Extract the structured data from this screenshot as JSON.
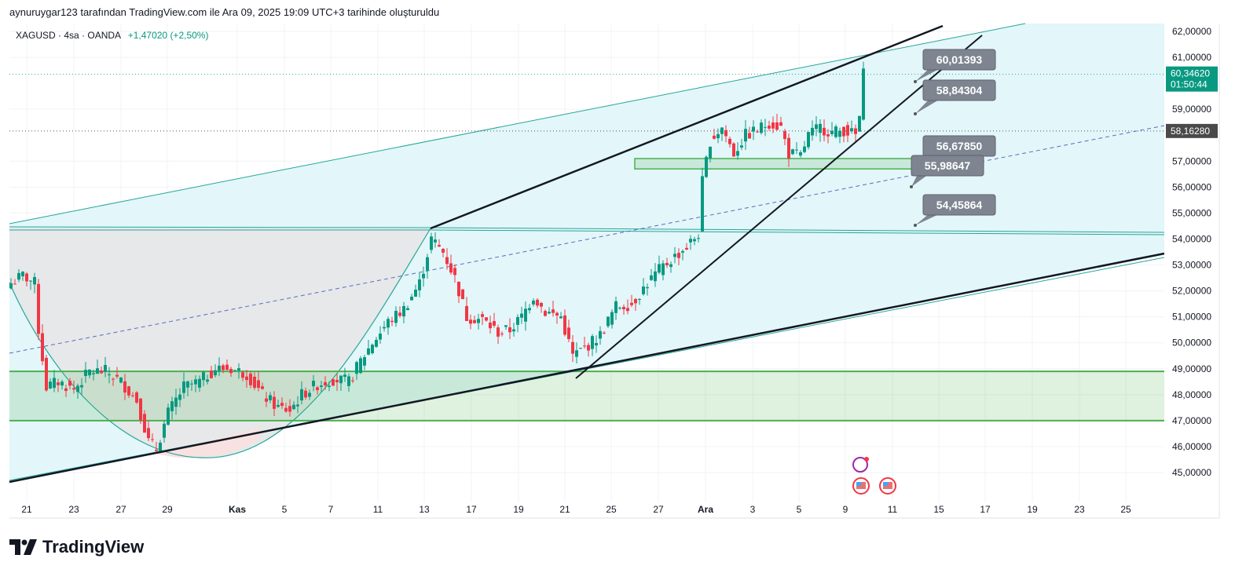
{
  "caption": "aynuruygar123 tarafından TradingView.com ile Ara 09, 2025 19:09 UTC+3 tarihinde oluşturuldu",
  "legend": {
    "symbol": "XAGUSD · 4sa · OANDA",
    "change": "+1,47020 (+2,50%)"
  },
  "branding": "TradingView",
  "colors": {
    "up": "#089981",
    "down": "#f23645",
    "channel": "#e3f6f9",
    "zone": "#4caf50",
    "teal": "#26a69a"
  },
  "chart_data": {
    "type": "candlestick",
    "symbol": "XAGUSD",
    "ylim": [
      44,
      62.5
    ],
    "y_ticks": [
      "62,00000",
      "61,00000",
      "59,00000",
      "57,00000",
      "56,00000",
      "55,00000",
      "54,00000",
      "53,00000",
      "52,00000",
      "51,00000",
      "50,00000",
      "49,00000",
      "48,00000",
      "47,00000",
      "46,00000",
      "45,00000"
    ],
    "y_tick_values": [
      62,
      61,
      59,
      57,
      56,
      55,
      54,
      53,
      52,
      51,
      50,
      49,
      48,
      47,
      46,
      45
    ],
    "x_ticks": [
      "21",
      "23",
      "27",
      "29",
      "Kas",
      "5",
      "7",
      "11",
      "13",
      "17",
      "19",
      "21",
      "25",
      "27",
      "Ara",
      "3",
      "5",
      "9",
      "11",
      "15",
      "17",
      "19",
      "23",
      "25"
    ],
    "current_price": {
      "value": "60,34620",
      "countdown": "01:50:44",
      "price": 60.3462
    },
    "ref_price": {
      "value": "58,16280",
      "price": 58.1628
    },
    "price_path": [
      [
        0,
        52.3
      ],
      [
        3,
        52.6
      ],
      [
        6,
        52.3
      ],
      [
        7,
        50.5
      ],
      [
        9,
        48.3
      ],
      [
        12,
        48.5
      ],
      [
        16,
        48.2
      ],
      [
        20,
        48.9
      ],
      [
        24,
        48.9
      ],
      [
        28,
        48.5
      ],
      [
        32,
        47.8
      ],
      [
        35,
        46.2
      ],
      [
        37,
        45.9
      ],
      [
        40,
        47.3
      ],
      [
        44,
        48.3
      ],
      [
        48,
        48.5
      ],
      [
        52,
        49.0
      ],
      [
        56,
        49.0
      ],
      [
        60,
        48.8
      ],
      [
        64,
        48.0
      ],
      [
        68,
        47.5
      ],
      [
        71,
        47.4
      ],
      [
        74,
        48.0
      ],
      [
        78,
        48.4
      ],
      [
        82,
        48.6
      ],
      [
        86,
        48.5
      ],
      [
        89,
        49.3
      ],
      [
        92,
        50.0
      ],
      [
        96,
        50.8
      ],
      [
        100,
        51.3
      ],
      [
        104,
        52.3
      ],
      [
        107,
        54.0
      ],
      [
        110,
        53.5
      ],
      [
        113,
        52.5
      ],
      [
        116,
        51.0
      ],
      [
        120,
        50.9
      ],
      [
        124,
        50.4
      ],
      [
        127,
        50.5
      ],
      [
        130,
        51.0
      ],
      [
        133,
        51.8
      ],
      [
        136,
        51.2
      ],
      [
        140,
        51.0
      ],
      [
        143,
        49.5
      ],
      [
        146,
        49.8
      ],
      [
        150,
        50.3
      ],
      [
        154,
        51.4
      ],
      [
        158,
        51.5
      ],
      [
        162,
        52.3
      ],
      [
        165,
        52.8
      ],
      [
        168,
        53.2
      ],
      [
        172,
        53.7
      ],
      [
        175,
        54.2
      ],
      [
        176,
        56.2
      ],
      [
        178,
        57.8
      ],
      [
        181,
        58.3
      ],
      [
        184,
        57.3
      ],
      [
        187,
        58.0
      ],
      [
        190,
        58.2
      ],
      [
        193,
        58.5
      ],
      [
        196,
        58.3
      ],
      [
        198,
        57.3
      ],
      [
        201,
        57.2
      ],
      [
        203,
        58.0
      ],
      [
        206,
        58.3
      ],
      [
        209,
        58.1
      ],
      [
        212,
        58.2
      ],
      [
        215,
        58.0
      ],
      [
        216,
        58.7
      ],
      [
        217,
        60.35
      ]
    ],
    "annotations": [
      "60,01393",
      "58,84304",
      "56,67850",
      "55,98647",
      "54,45864"
    ],
    "annotation_prices": [
      60.01393,
      58.84304,
      56.6785,
      55.98647,
      54.45864
    ],
    "zones": [
      {
        "from": 47.0,
        "to": 48.9
      },
      {
        "from": 56.7,
        "to": 57.1
      }
    ]
  }
}
